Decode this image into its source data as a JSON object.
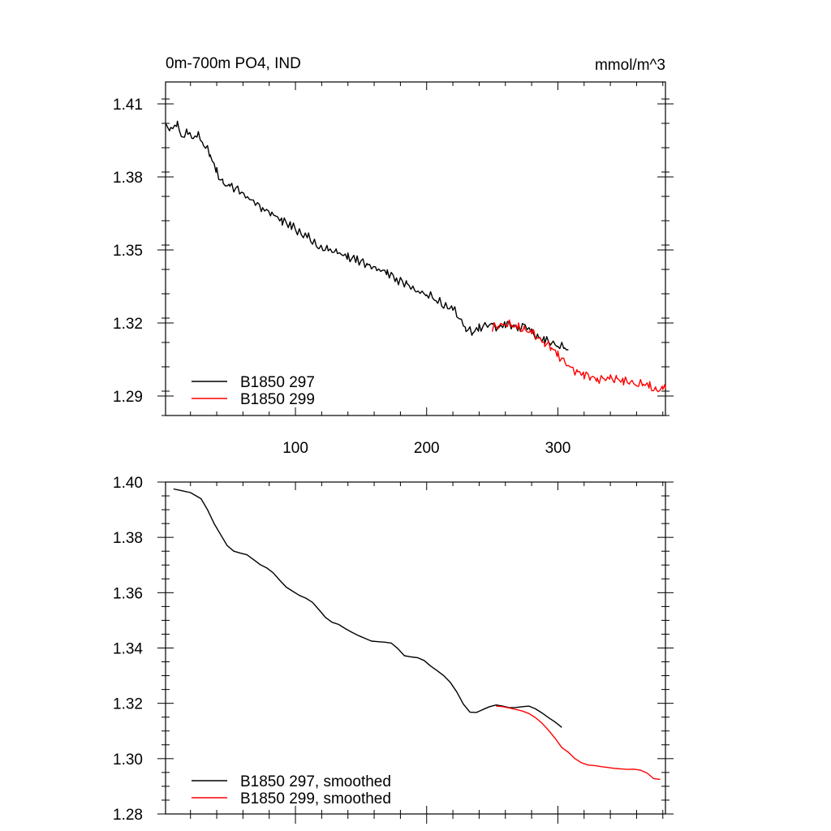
{
  "chart_data": [
    {
      "type": "line",
      "title": "0m-700m PO4, IND",
      "units": "mmol/m^3",
      "xlabel": "",
      "ylabel": "",
      "xlim": [
        1,
        382
      ],
      "ylim": [
        1.282,
        1.419
      ],
      "x_ticks": [
        100,
        200,
        300
      ],
      "x_tick_labels": [
        "100",
        "200",
        "300"
      ],
      "y_ticks": [
        1.29,
        1.32,
        1.35,
        1.38,
        1.41
      ],
      "y_tick_labels": [
        "1.29",
        "1.32",
        "1.35",
        "1.38",
        "1.41"
      ],
      "legend_position": "bottom-left",
      "series": [
        {
          "name": "B1850 297",
          "color": "#000000",
          "x": [
            1,
            5,
            10,
            14,
            18,
            22,
            26,
            30,
            35,
            40,
            45,
            50,
            56,
            62,
            68,
            75,
            82,
            90,
            97,
            103,
            110,
            118,
            125,
            132,
            140,
            147,
            155,
            162,
            170,
            177,
            185,
            192,
            200,
            207,
            213,
            220,
            225,
            230,
            235,
            240,
            245,
            250,
            255,
            260,
            265,
            270,
            275,
            280,
            285,
            290,
            295,
            300,
            305,
            308
          ],
          "values": [
            1.401,
            1.4,
            1.401,
            1.397,
            1.398,
            1.396,
            1.397,
            1.394,
            1.389,
            1.382,
            1.377,
            1.376,
            1.375,
            1.372,
            1.37,
            1.367,
            1.365,
            1.362,
            1.36,
            1.357,
            1.355,
            1.351,
            1.35,
            1.349,
            1.347,
            1.346,
            1.344,
            1.342,
            1.341,
            1.338,
            1.336,
            1.333,
            1.332,
            1.33,
            1.327,
            1.326,
            1.322,
            1.318,
            1.316,
            1.318,
            1.319,
            1.319,
            1.318,
            1.32,
            1.319,
            1.318,
            1.319,
            1.316,
            1.314,
            1.313,
            1.312,
            1.311,
            1.31,
            1.309
          ]
        },
        {
          "name": "B1850 299",
          "color": "#ff0000",
          "x": [
            250,
            255,
            260,
            265,
            270,
            275,
            280,
            285,
            290,
            295,
            300,
            305,
            310,
            315,
            320,
            325,
            330,
            335,
            340,
            345,
            350,
            355,
            360,
            365,
            370,
            375,
            380,
            382
          ],
          "values": [
            1.318,
            1.319,
            1.32,
            1.319,
            1.318,
            1.317,
            1.316,
            1.314,
            1.312,
            1.31,
            1.307,
            1.304,
            1.301,
            1.3,
            1.299,
            1.298,
            1.297,
            1.297,
            1.297,
            1.297,
            1.296,
            1.296,
            1.295,
            1.295,
            1.294,
            1.292,
            1.293,
            1.293
          ]
        }
      ]
    },
    {
      "type": "line",
      "title": "",
      "xlabel": "",
      "ylabel": "",
      "xlim": [
        1,
        382
      ],
      "ylim": [
        1.28,
        1.4
      ],
      "x_ticks": [
        100,
        200,
        300
      ],
      "x_tick_labels": [],
      "y_ticks": [
        1.28,
        1.3,
        1.32,
        1.34,
        1.36,
        1.38,
        1.4
      ],
      "y_tick_labels": [
        "1.28",
        "1.30",
        "1.32",
        "1.34",
        "1.36",
        "1.38",
        "1.40"
      ],
      "legend_position": "bottom-left",
      "series": [
        {
          "name": "B1850 297, smoothed",
          "color": "#000000",
          "x": [
            7,
            12,
            20,
            28,
            33,
            38,
            43,
            48,
            53,
            58,
            63,
            68,
            73,
            78,
            83,
            88,
            93,
            98,
            103,
            108,
            113,
            118,
            123,
            128,
            133,
            138,
            143,
            148,
            153,
            158,
            163,
            168,
            173,
            178,
            183,
            188,
            193,
            198,
            203,
            208,
            213,
            218,
            223,
            228,
            233,
            238,
            243,
            248,
            253,
            258,
            263,
            268,
            273,
            278,
            283,
            288,
            293,
            298,
            303
          ],
          "values": [
            1.3975,
            1.397,
            1.3962,
            1.394,
            1.39,
            1.385,
            1.381,
            1.377,
            1.375,
            1.3743,
            1.3737,
            1.372,
            1.3702,
            1.369,
            1.3672,
            1.3645,
            1.362,
            1.3605,
            1.359,
            1.358,
            1.3565,
            1.3538,
            1.351,
            1.3493,
            1.3485,
            1.347,
            1.3457,
            1.3445,
            1.3435,
            1.3425,
            1.3423,
            1.3421,
            1.3418,
            1.3398,
            1.3372,
            1.3368,
            1.3365,
            1.3355,
            1.3335,
            1.3318,
            1.33,
            1.3276,
            1.3241,
            1.3197,
            1.3168,
            1.3167,
            1.3178,
            1.3188,
            1.3194,
            1.319,
            1.3184,
            1.3185,
            1.3188,
            1.319,
            1.318,
            1.3165,
            1.3148,
            1.3132,
            1.3113
          ]
        },
        {
          "name": "B1850 299, smoothed",
          "color": "#ff0000",
          "x": [
            253,
            258,
            263,
            268,
            273,
            278,
            283,
            288,
            293,
            298,
            303,
            308,
            313,
            318,
            323,
            328,
            333,
            338,
            343,
            348,
            353,
            358,
            363,
            368,
            373,
            378
          ],
          "values": [
            1.319,
            1.3188,
            1.3183,
            1.3178,
            1.3172,
            1.3163,
            1.3148,
            1.3128,
            1.3102,
            1.3073,
            1.304,
            1.3023,
            1.3,
            1.2985,
            1.2977,
            1.2975,
            1.2971,
            1.2968,
            1.2965,
            1.2963,
            1.2961,
            1.2962,
            1.2958,
            1.2948,
            1.2928,
            1.2925
          ]
        }
      ]
    }
  ]
}
